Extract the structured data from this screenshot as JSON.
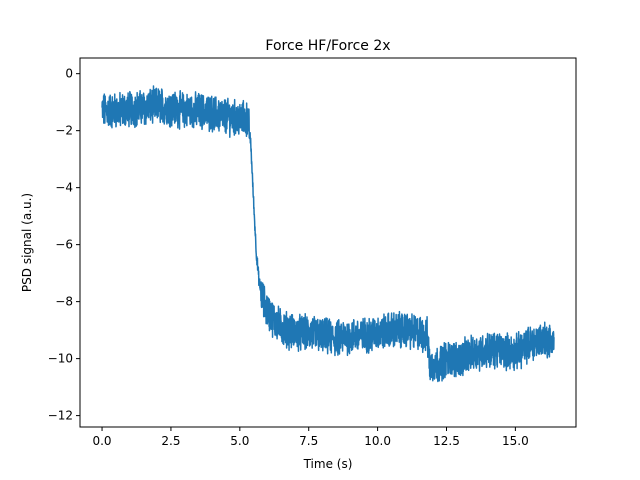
{
  "chart_data": {
    "type": "line",
    "title": "Force HF/Force 2x",
    "xlabel": "Time (s)",
    "ylabel": "PSD signal (a.u.)",
    "xlim": [
      -0.8,
      17.2
    ],
    "ylim": [
      -12.4,
      0.55
    ],
    "x_ticks": [
      0,
      2.5,
      5,
      7.5,
      10,
      12.5,
      15
    ],
    "x_tick_labels": [
      "0.0",
      "2.5",
      "5.0",
      "7.5",
      "10.0",
      "12.5",
      "15.0"
    ],
    "y_ticks": [
      0,
      -2,
      -4,
      -6,
      -8,
      -10,
      -12
    ],
    "y_tick_labels": [
      "0",
      "−2",
      "−4",
      "−6",
      "−8",
      "−10",
      "−12"
    ],
    "grid": false,
    "series": [
      {
        "name": "",
        "color": "#1f77b4",
        "noise": 0.55,
        "x": [
          0.0,
          0.5,
          1.0,
          1.5,
          2.0,
          2.5,
          3.0,
          3.5,
          4.0,
          4.5,
          5.0,
          5.3,
          5.4,
          5.5,
          5.6,
          5.7,
          5.8,
          5.9,
          6.0,
          6.2,
          6.5,
          7.0,
          7.5,
          8.0,
          8.5,
          9.0,
          9.5,
          10.0,
          10.5,
          11.0,
          11.5,
          11.8,
          11.9,
          12.0,
          12.2,
          12.5,
          13.0,
          13.5,
          14.0,
          14.5,
          15.0,
          15.5,
          16.0,
          16.4
        ],
        "y": [
          -1.3,
          -1.3,
          -1.25,
          -1.2,
          -1.1,
          -1.2,
          -1.3,
          -1.3,
          -1.4,
          -1.5,
          -1.6,
          -1.6,
          -2.5,
          -4.5,
          -6.3,
          -7.3,
          -7.8,
          -8.1,
          -8.3,
          -8.6,
          -8.9,
          -9.1,
          -9.1,
          -9.2,
          -9.3,
          -9.2,
          -9.2,
          -9.1,
          -9.0,
          -9.0,
          -9.1,
          -9.2,
          -10.3,
          -10.2,
          -10.2,
          -10.0,
          -10.0,
          -9.8,
          -9.7,
          -9.7,
          -9.8,
          -9.5,
          -9.3,
          -9.4
        ]
      }
    ]
  }
}
